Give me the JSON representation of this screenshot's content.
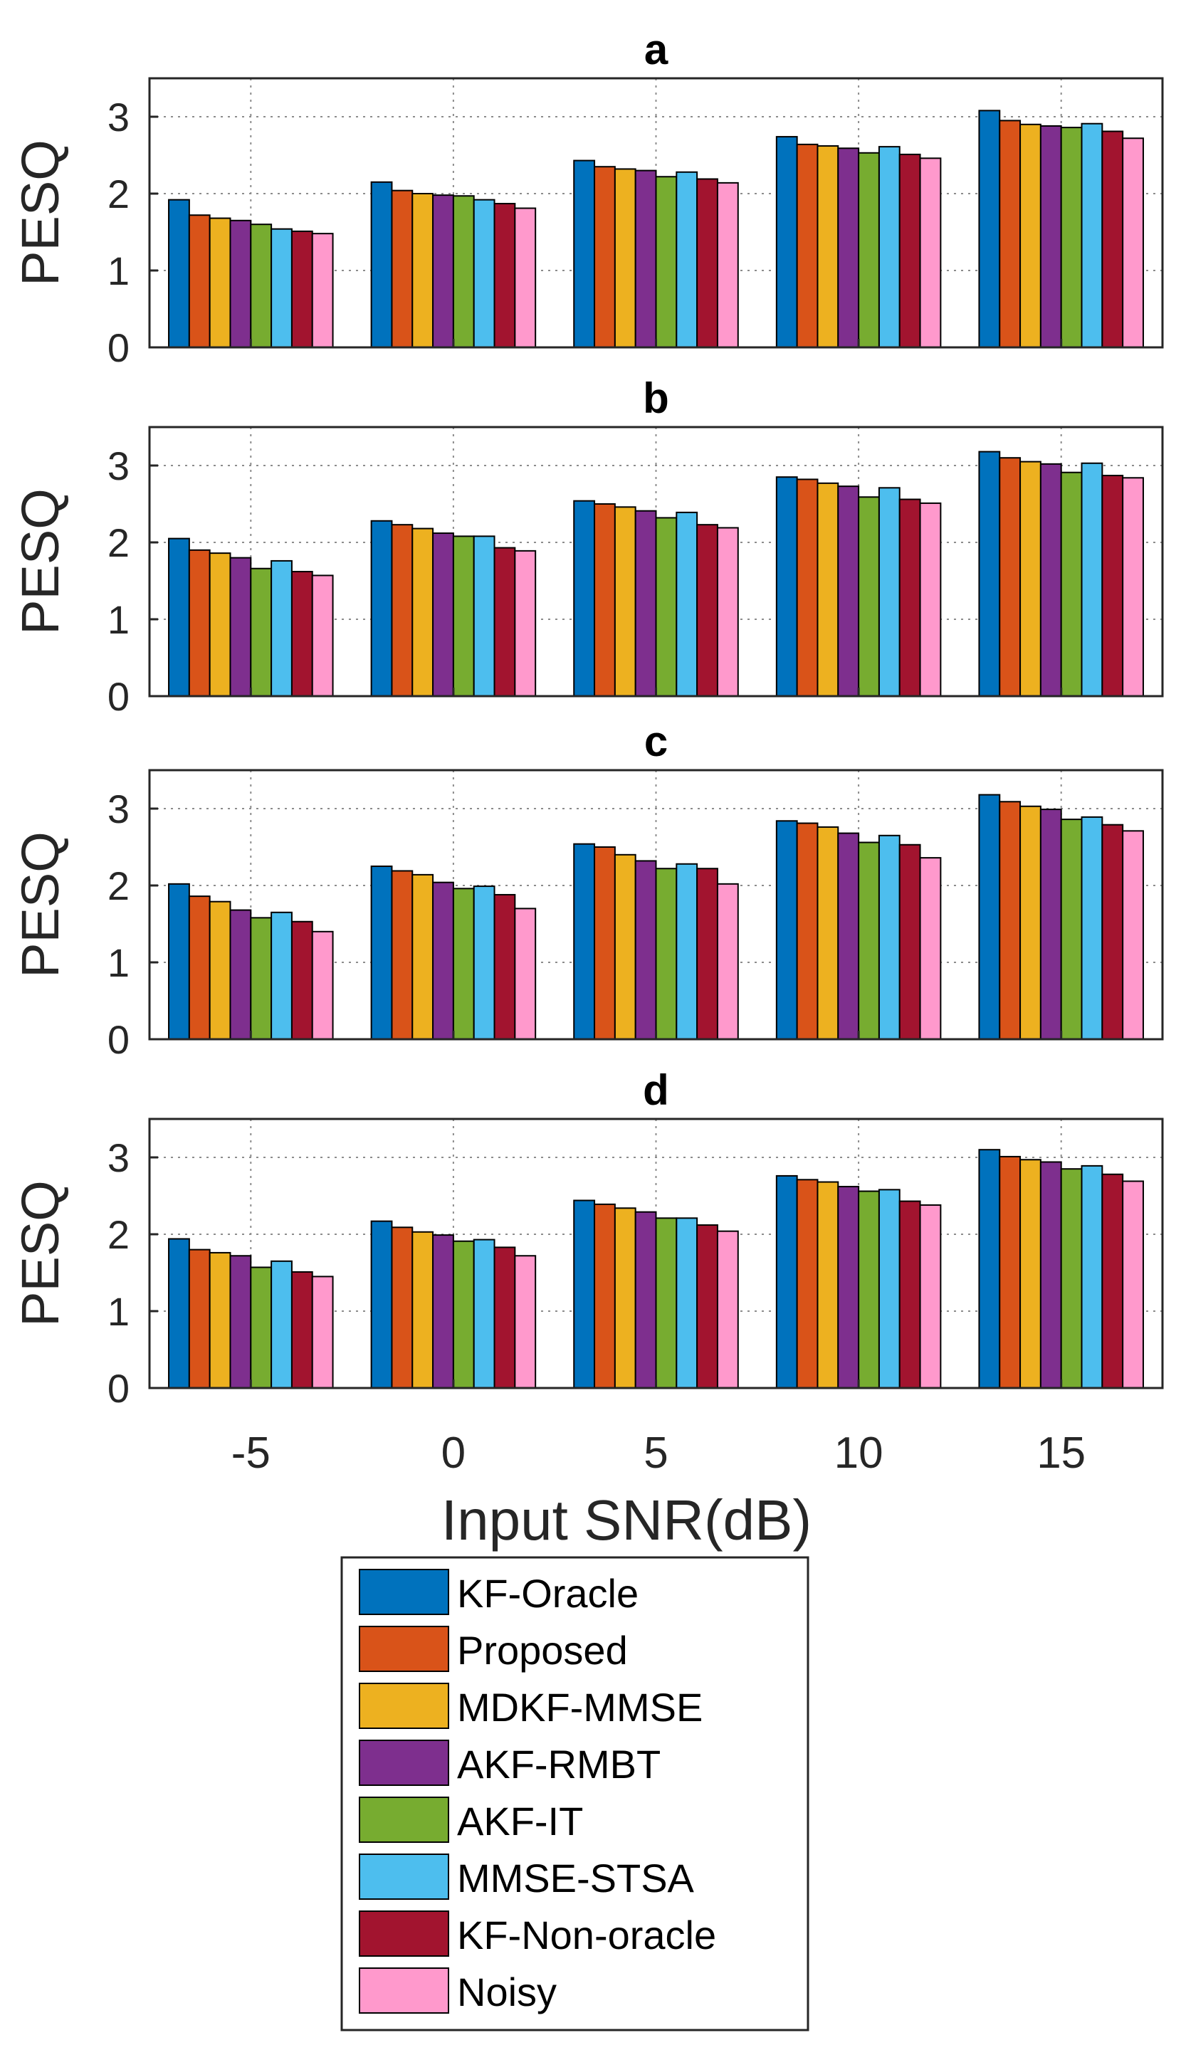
{
  "chart_data": {
    "type": "bar",
    "xlabel": "Input SNR(dB)",
    "ylabel": "PESQ",
    "ylim": [
      0,
      3.5
    ],
    "yticks": [
      "0",
      "1",
      "2",
      "3"
    ],
    "grid": true,
    "categories": [
      "-5",
      "0",
      "5",
      "10",
      "15"
    ],
    "legend_position": "bottom",
    "series_styles": [
      {
        "name": "KF-Oracle",
        "color": "#0072BD"
      },
      {
        "name": "Proposed",
        "color": "#D95319"
      },
      {
        "name": "MDKF-MMSE",
        "color": "#EDB120"
      },
      {
        "name": "AKF-RMBT",
        "color": "#7E2F8E"
      },
      {
        "name": "AKF-IT",
        "color": "#77AC30"
      },
      {
        "name": "MMSE-STSA",
        "color": "#4DBEEE"
      },
      {
        "name": "KF-Non-oracle",
        "color": "#A2142F"
      },
      {
        "name": "Noisy",
        "color": "#FF99CC"
      }
    ],
    "panels": [
      {
        "title": "a",
        "series": [
          {
            "name": "KF-Oracle",
            "values": [
              1.92,
              2.15,
              2.43,
              2.74,
              3.08
            ]
          },
          {
            "name": "Proposed",
            "values": [
              1.72,
              2.04,
              2.35,
              2.64,
              2.95
            ]
          },
          {
            "name": "MDKF-MMSE",
            "values": [
              1.68,
              2.0,
              2.32,
              2.62,
              2.9
            ]
          },
          {
            "name": "AKF-RMBT",
            "values": [
              1.65,
              1.98,
              2.3,
              2.59,
              2.88
            ]
          },
          {
            "name": "AKF-IT",
            "values": [
              1.6,
              1.97,
              2.22,
              2.53,
              2.86
            ]
          },
          {
            "name": "MMSE-STSA",
            "values": [
              1.54,
              1.92,
              2.28,
              2.61,
              2.91
            ]
          },
          {
            "name": "KF-Non-oracle",
            "values": [
              1.51,
              1.87,
              2.19,
              2.51,
              2.81
            ]
          },
          {
            "name": "Noisy",
            "values": [
              1.48,
              1.81,
              2.14,
              2.46,
              2.72
            ]
          }
        ]
      },
      {
        "title": "b",
        "series": [
          {
            "name": "KF-Oracle",
            "values": [
              2.05,
              2.28,
              2.54,
              2.85,
              3.18
            ]
          },
          {
            "name": "Proposed",
            "values": [
              1.9,
              2.23,
              2.5,
              2.82,
              3.1
            ]
          },
          {
            "name": "MDKF-MMSE",
            "values": [
              1.86,
              2.18,
              2.46,
              2.77,
              3.05
            ]
          },
          {
            "name": "AKF-RMBT",
            "values": [
              1.8,
              2.12,
              2.41,
              2.73,
              3.02
            ]
          },
          {
            "name": "AKF-IT",
            "values": [
              1.66,
              2.08,
              2.32,
              2.59,
              2.91
            ]
          },
          {
            "name": "MMSE-STSA",
            "values": [
              1.76,
              2.08,
              2.39,
              2.71,
              3.03
            ]
          },
          {
            "name": "KF-Non-oracle",
            "values": [
              1.62,
              1.93,
              2.23,
              2.56,
              2.87
            ]
          },
          {
            "name": "Noisy",
            "values": [
              1.57,
              1.89,
              2.19,
              2.51,
              2.84
            ]
          }
        ]
      },
      {
        "title": "c",
        "series": [
          {
            "name": "KF-Oracle",
            "values": [
              2.02,
              2.25,
              2.54,
              2.84,
              3.18
            ]
          },
          {
            "name": "Proposed",
            "values": [
              1.86,
              2.19,
              2.5,
              2.81,
              3.09
            ]
          },
          {
            "name": "MDKF-MMSE",
            "values": [
              1.79,
              2.14,
              2.4,
              2.76,
              3.03
            ]
          },
          {
            "name": "AKF-RMBT",
            "values": [
              1.68,
              2.04,
              2.32,
              2.68,
              2.99
            ]
          },
          {
            "name": "AKF-IT",
            "values": [
              1.58,
              1.96,
              2.22,
              2.56,
              2.86
            ]
          },
          {
            "name": "MMSE-STSA",
            "values": [
              1.65,
              1.99,
              2.28,
              2.65,
              2.89
            ]
          },
          {
            "name": "KF-Non-oracle",
            "values": [
              1.53,
              1.88,
              2.22,
              2.53,
              2.79
            ]
          },
          {
            "name": "Noisy",
            "values": [
              1.4,
              1.7,
              2.02,
              2.36,
              2.71
            ]
          }
        ]
      },
      {
        "title": "d",
        "series": [
          {
            "name": "KF-Oracle",
            "values": [
              1.94,
              2.17,
              2.44,
              2.76,
              3.1
            ]
          },
          {
            "name": "Proposed",
            "values": [
              1.8,
              2.09,
              2.39,
              2.71,
              3.01
            ]
          },
          {
            "name": "MDKF-MMSE",
            "values": [
              1.76,
              2.03,
              2.34,
              2.68,
              2.97
            ]
          },
          {
            "name": "AKF-RMBT",
            "values": [
              1.72,
              1.99,
              2.29,
              2.62,
              2.94
            ]
          },
          {
            "name": "AKF-IT",
            "values": [
              1.57,
              1.91,
              2.21,
              2.56,
              2.85
            ]
          },
          {
            "name": "MMSE-STSA",
            "values": [
              1.65,
              1.93,
              2.21,
              2.58,
              2.89
            ]
          },
          {
            "name": "KF-Non-oracle",
            "values": [
              1.51,
              1.83,
              2.12,
              2.43,
              2.78
            ]
          },
          {
            "name": "Noisy",
            "values": [
              1.45,
              1.72,
              2.04,
              2.38,
              2.69
            ]
          }
        ]
      }
    ]
  }
}
